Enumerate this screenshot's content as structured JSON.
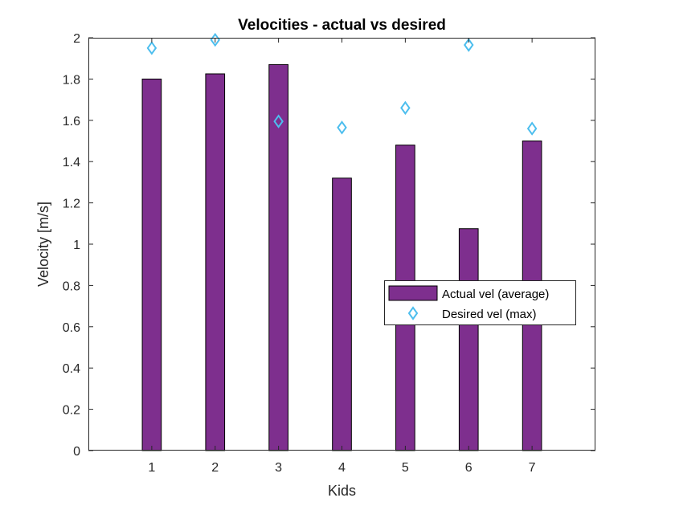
{
  "chart_data": {
    "type": "bar",
    "title": "Velocities - actual vs desired",
    "xlabel": "Kids",
    "ylabel": "Velocity [m/s]",
    "categories": [
      "1",
      "2",
      "3",
      "4",
      "5",
      "6",
      "7"
    ],
    "x": [
      1,
      2,
      3,
      4,
      5,
      6,
      7
    ],
    "xlim": [
      0,
      8
    ],
    "ylim": [
      0,
      2
    ],
    "yticks": [
      0,
      0.2,
      0.4,
      0.6,
      0.8,
      1,
      1.2,
      1.4,
      1.6,
      1.8,
      2
    ],
    "ytick_labels": [
      "0",
      "0.2",
      "0.4",
      "0.6",
      "0.8",
      "1",
      "1.2",
      "1.4",
      "1.6",
      "1.8",
      "2"
    ],
    "grid": false,
    "legend_position": "center-right",
    "series": [
      {
        "name": "Actual vel (average)",
        "kind": "bar",
        "color": "#7E2F8E",
        "values": [
          1.8,
          1.825,
          1.87,
          1.32,
          1.48,
          1.075,
          1.5
        ]
      },
      {
        "name": "Desired vel (max)",
        "kind": "scatter",
        "marker": "diamond",
        "color": "#4DBEEE",
        "values": [
          1.95,
          1.99,
          1.595,
          1.565,
          1.66,
          1.965,
          1.56
        ]
      }
    ]
  }
}
